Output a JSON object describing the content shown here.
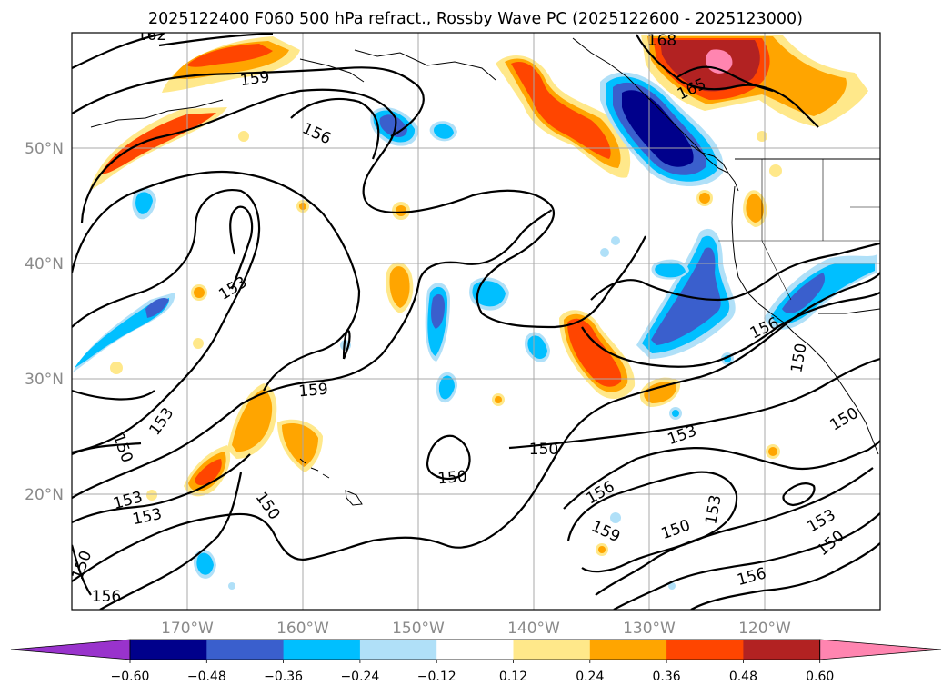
{
  "title": "2025122400 F060 500 hPa refract., Rossby Wave PC (2025122600 - 2025123000)",
  "lat_labels": [
    "50°N",
    "40°N",
    "30°N",
    "20°N"
  ],
  "lon_labels": [
    "170°W",
    "160°W",
    "150°W",
    "140°W",
    "130°W",
    "120°W"
  ],
  "contour_labels": [
    "162",
    "159",
    "156",
    "168",
    "165",
    "153",
    "159",
    "153",
    "150",
    "150",
    "153",
    "153",
    "150",
    "150",
    "156",
    "150",
    "153",
    "156",
    "159",
    "150",
    "153",
    "150",
    "156",
    "153",
    "150",
    "156",
    "150",
    "150"
  ],
  "colorbar": {
    "ticks": [
      "−0.60",
      "−0.48",
      "−0.36",
      "−0.24",
      "−0.12",
      "0.12",
      "0.24",
      "0.36",
      "0.48",
      "0.60"
    ],
    "colors": [
      "#9933cc",
      "#00008b",
      "#3a5fcd",
      "#00bfff",
      "#b0e0f8",
      "#ffffff",
      "#ffe88a",
      "#ffa500",
      "#ff4500",
      "#b22222",
      "#ff85b0"
    ]
  }
}
